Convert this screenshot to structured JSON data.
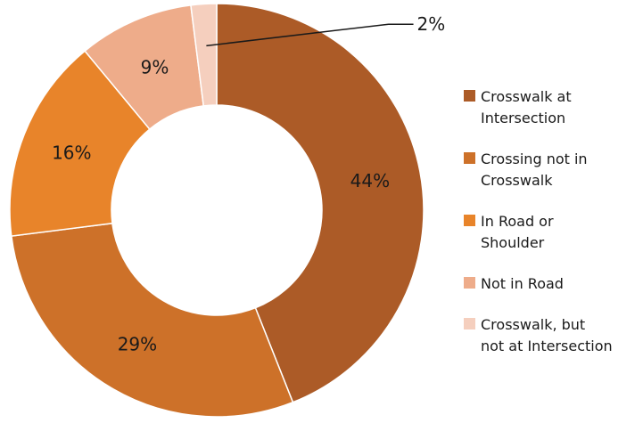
{
  "chart_data": {
    "type": "pie",
    "style": "donut",
    "start": "top",
    "direction": "clockwise",
    "legend_position": "right",
    "slices": [
      {
        "name": "Crosswalk at Intersection",
        "legend_label": "Crosswalk at\nIntersection",
        "value": 44,
        "label": "44%",
        "color": "#ac5b27"
      },
      {
        "name": "Crossing not in Crosswalk",
        "legend_label": "Crossing not in\nCrosswalk",
        "value": 29,
        "label": "29%",
        "color": "#cd7129"
      },
      {
        "name": "In Road or Shoulder",
        "legend_label": "In Road or\nShoulder",
        "value": 16,
        "label": "16%",
        "color": "#e8842a"
      },
      {
        "name": "Not in Road",
        "legend_label": "Not in Road",
        "value": 9,
        "label": "9%",
        "color": "#eeac8a"
      },
      {
        "name": "Crosswalk, but not at Intersection",
        "legend_label": "Crosswalk, but\nnot at Intersection",
        "value": 2,
        "label": "2%",
        "color": "#f5cfbe"
      }
    ]
  }
}
